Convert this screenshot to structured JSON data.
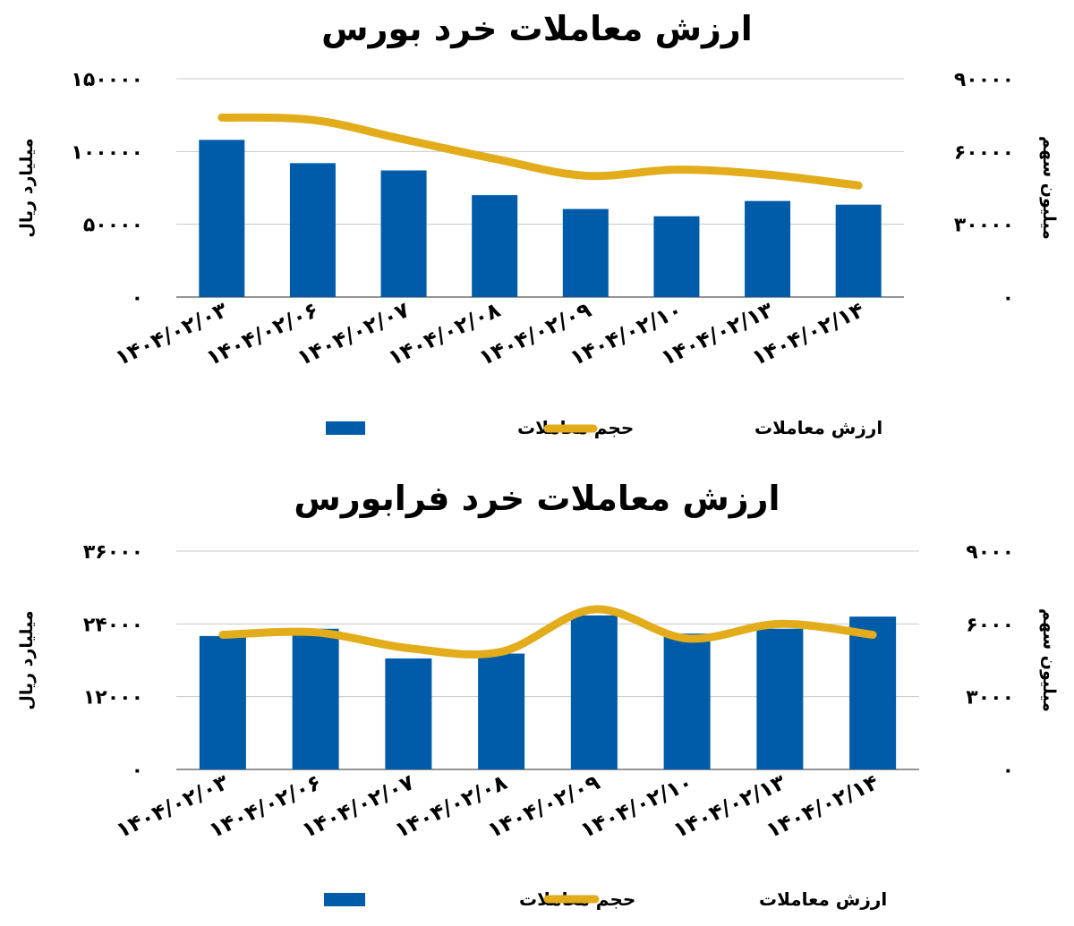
{
  "colors": {
    "bar": "#005ca8",
    "line": "#e2ac1b",
    "grid": "#c8c8c8",
    "axis": "#555555"
  },
  "chart_data": [
    {
      "type": "bar",
      "title": "ارزش معاملات خرد بورس",
      "categories": [
        "۱۴۰۴/۰۲/۰۳",
        "۱۴۰۴/۰۲/۰۶",
        "۱۴۰۴/۰۲/۰۷",
        "۱۴۰۴/۰۲/۰۸",
        "۱۴۰۴/۰۲/۰۹",
        "۱۴۰۴/۰۲/۱۰",
        "۱۴۰۴/۰۲/۱۳",
        "۱۴۰۴/۰۲/۱۴"
      ],
      "ylabel": "میلیارد ریال",
      "y2label": "میلیون سهم",
      "ylim": [
        0,
        150000
      ],
      "y2lim": [
        0,
        90000
      ],
      "yticks": [
        "۰",
        "۵۰۰۰۰",
        "۱۰۰۰۰۰",
        "۱۵۰۰۰۰"
      ],
      "y2ticks": [
        "۰",
        "۳۰۰۰۰",
        "۶۰۰۰۰",
        "۹۰۰۰۰"
      ],
      "grid": true,
      "legend_position": "bottom",
      "series": [
        {
          "name": "حجم معاملات",
          "type": "bar",
          "axis": "left",
          "values": [
            108000,
            92000,
            87000,
            70000,
            60500,
            55500,
            66000,
            63500
          ]
        },
        {
          "name": "ارزش معاملات",
          "type": "line",
          "axis": "right",
          "values": [
            74000,
            73000,
            65000,
            57000,
            50000,
            52500,
            50500,
            46000
          ]
        }
      ]
    },
    {
      "type": "bar",
      "title": "ارزش معاملات خرد فرابورس",
      "categories": [
        "۱۴۰۴/۰۲/۰۳",
        "۱۴۰۴/۰۲/۰۶",
        "۱۴۰۴/۰۲/۰۷",
        "۱۴۰۴/۰۲/۰۸",
        "۱۴۰۴/۰۲/۰۹",
        "۱۴۰۴/۰۲/۱۰",
        "۱۴۰۴/۰۲/۱۳",
        "۱۴۰۴/۰۲/۱۴"
      ],
      "ylabel": "میلیارد ریال",
      "y2label": "میلیون سهم",
      "ylim": [
        0,
        36000
      ],
      "y2lim": [
        0,
        9000
      ],
      "yticks": [
        "۰",
        "۱۲۰۰۰",
        "۲۴۰۰۰",
        "۳۶۰۰۰"
      ],
      "y2ticks": [
        "۰",
        "۳۰۰۰",
        "۶۰۰۰",
        "۹۰۰۰"
      ],
      "grid": true,
      "legend_position": "bottom",
      "series": [
        {
          "name": "حجم معاملات",
          "type": "bar",
          "axis": "left",
          "values": [
            22000,
            23200,
            18300,
            19100,
            25400,
            22400,
            23200,
            25200
          ]
        },
        {
          "name": "ارزش معاملات",
          "type": "line",
          "axis": "right",
          "values": [
            5550,
            5650,
            5000,
            4850,
            6600,
            5400,
            6000,
            5550
          ]
        }
      ]
    }
  ]
}
